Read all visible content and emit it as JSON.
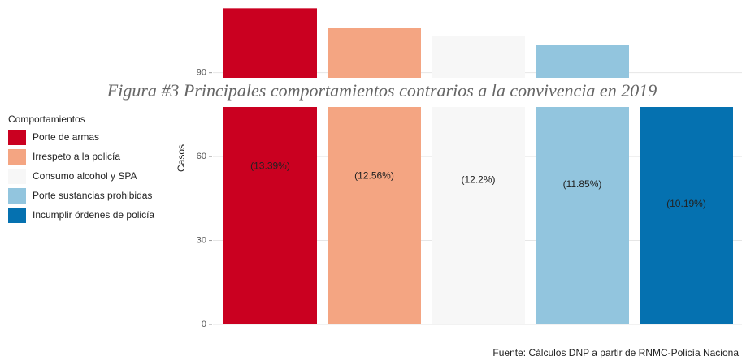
{
  "chart_data": {
    "type": "bar",
    "title": "Figura #3 Principales comportamientos contrarios a la convivencia en 2019",
    "y_label": "Casos",
    "legend_title": "Comportamientos",
    "caption": "Fuente: Cálculos DNP a partir de RNMC-Policía Naciona",
    "categories": [
      "Porte de armas",
      "Irrespeto a la policía",
      "Consumo alcohol y SPA",
      "Porte sustancias prohibidas",
      "Incumplir órdenes de policía"
    ],
    "values": [
      113,
      106,
      103,
      100,
      86
    ],
    "annotations": [
      "(13.39%)",
      "(12.56%)",
      "(12.2%)",
      "(11.85%)",
      "(10.19%)"
    ],
    "colors": [
      "#ca0020",
      "#f4a582",
      "#f7f7f7",
      "#92c5de",
      "#0571b0"
    ],
    "ylim": [
      0,
      116
    ],
    "yticks": [
      0,
      30,
      60,
      90
    ],
    "grid": true,
    "legend": "left"
  }
}
